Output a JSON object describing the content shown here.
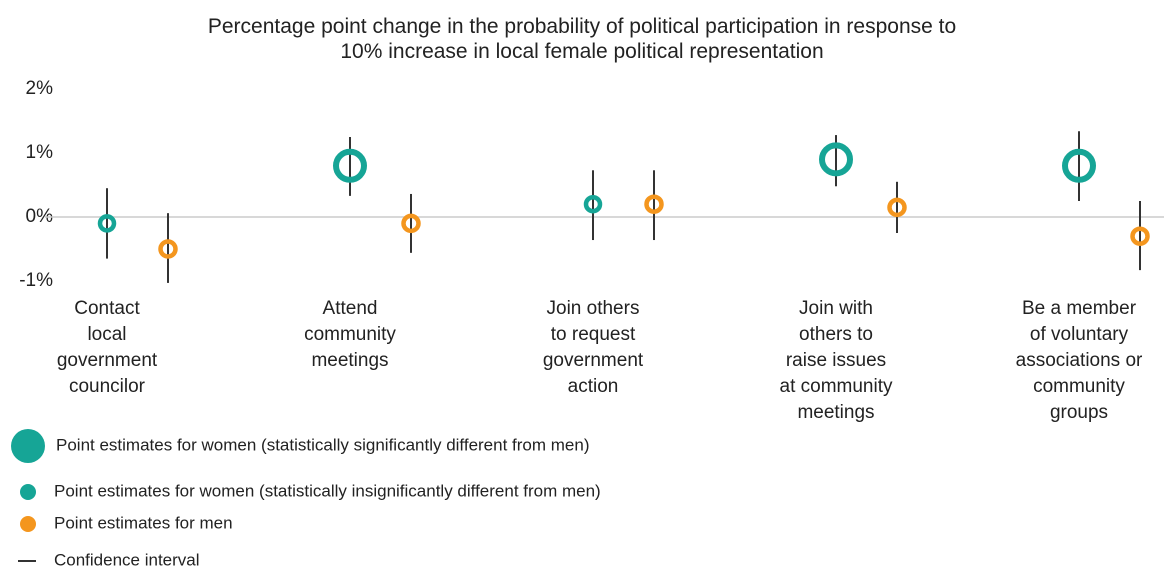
{
  "chart_data": {
    "type": "dot",
    "title": "Percentage point change in the probability of political participation in response to\n10% increase in local female political representation",
    "categories": [
      "Contact\nlocal\ngovernment\ncouncilor",
      "Attend\ncommunity\nmeetings",
      "Join others\nto request\ngovernment\naction",
      "Join with\nothers to\nraise issues\nat community\nmeetings",
      "Be a member\nof voluntary\nassociations or\ncommunity\ngroups"
    ],
    "series": [
      {
        "name": "Women",
        "color": "#16a596",
        "values": [
          -0.1,
          0.8,
          0.2,
          0.9,
          0.8
        ],
        "ci_low": [
          -0.65,
          0.33,
          -0.36,
          0.48,
          0.25
        ],
        "ci_high": [
          0.45,
          1.25,
          0.73,
          1.28,
          1.34
        ],
        "significant": [
          false,
          true,
          false,
          true,
          true
        ]
      },
      {
        "name": "Men",
        "color": "#f4961e",
        "values": [
          -0.5,
          -0.1,
          0.2,
          0.15,
          -0.3
        ],
        "ci_low": [
          -1.03,
          -0.56,
          -0.36,
          -0.25,
          -0.83
        ],
        "ci_high": [
          0.06,
          0.36,
          0.73,
          0.55,
          0.25
        ]
      }
    ],
    "ylim": [
      -1,
      2
    ],
    "yticks": [
      {
        "value": -1,
        "label": "-1%"
      },
      {
        "value": 0,
        "label": "0%"
      },
      {
        "value": 1,
        "label": "1%"
      },
      {
        "value": 2,
        "label": "2%"
      }
    ],
    "legend": [
      "Point estimates for women (statistically significantly different from men)",
      "Point estimates for women (statistically insignificantly different from men)",
      "Point estimates for men",
      "Confidence interval"
    ]
  }
}
